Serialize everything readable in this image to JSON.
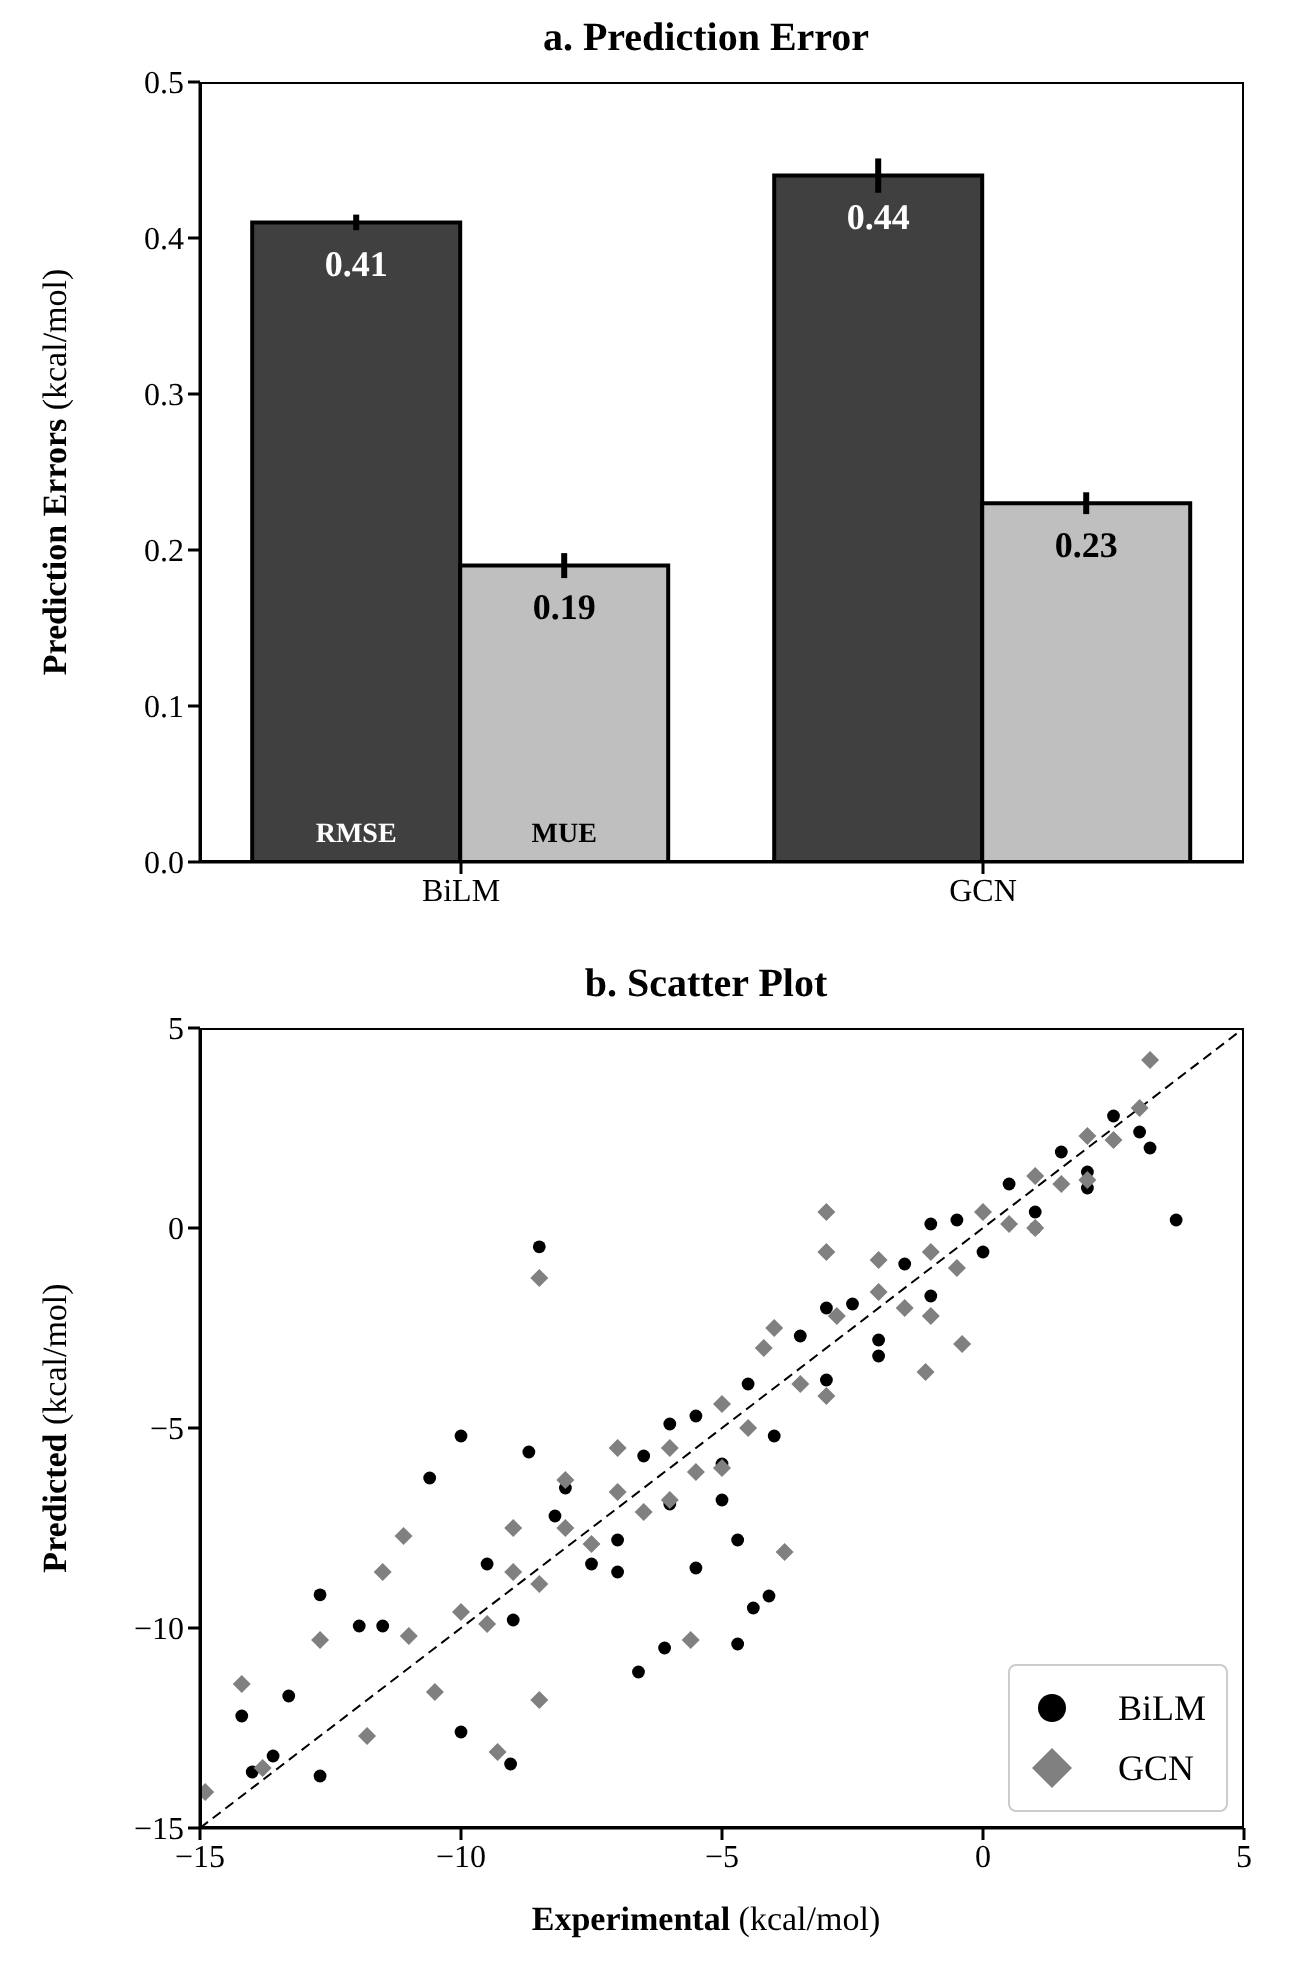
{
  "chart_data": [
    {
      "type": "bar",
      "title": "a.  Prediction Error",
      "ylabel": "Prediction Errors (kcal/mol)",
      "categories": [
        "BiLM",
        "GCN"
      ],
      "series": [
        {
          "name": "RMSE",
          "color": "#404040",
          "values": [
            0.41,
            0.44
          ],
          "errors": [
            0.005,
            0.011
          ]
        },
        {
          "name": "MUE",
          "color": "#bfbfbf",
          "values": [
            0.19,
            0.23
          ],
          "errors": [
            0.008,
            0.007
          ]
        }
      ],
      "ylim": [
        0,
        0.5
      ],
      "yticks": [
        {
          "value": 0,
          "label": "0.0"
        },
        0.1,
        0.2,
        0.3,
        0.4,
        0.5
      ],
      "data_labels": true
    },
    {
      "type": "scatter",
      "title": "b.  Scatter Plot",
      "xlabel": "Experimental (kcal/mol)",
      "ylabel": "Predicted (kcal/mol)",
      "series": [
        {
          "type": "line",
          "color": "#000000",
          "line_style": "dashed",
          "marker": "none",
          "x": [
            -15,
            5
          ],
          "values": [
            -15,
            5
          ]
        },
        {
          "name": "BiLM",
          "color": "#000000",
          "marker": "circle",
          "x": [
            -8.5,
            -12.7,
            -14.2,
            -10,
            -10.6,
            -8.7,
            -6.6,
            -6.1,
            -10,
            -9.05,
            -13.3,
            -12.7,
            -11.95,
            -11.5,
            3.7,
            -4.7,
            -4.4,
            -4.1,
            -4.7,
            -5.5,
            -13.6,
            -14,
            -9.5,
            -9,
            -8.2,
            -7.5,
            -7,
            -6.5,
            -6,
            -5.5,
            -5,
            -4.5,
            -4,
            -3.5,
            -3,
            -2.5,
            -2,
            -1.5,
            -1,
            -0.5,
            0,
            0.5,
            1,
            1.5,
            2,
            2.5,
            3,
            -8,
            -7,
            -6,
            -5,
            -3,
            -2,
            -1,
            1,
            2,
            3.2
          ],
          "values": [
            -0.47,
            -9.17,
            -12.2,
            -5.2,
            -6.25,
            -5.6,
            -11.1,
            -10.5,
            -12.6,
            -13.4,
            -11.7,
            -13.7,
            -9.95,
            -9.95,
            0.2,
            -10.4,
            -9.5,
            -9.2,
            -7.8,
            -8.5,
            -13.2,
            -13.6,
            -8.4,
            -9.8,
            -7.2,
            -8.4,
            -7.8,
            -5.7,
            -6.9,
            -4.7,
            -5.9,
            -3.9,
            -5.2,
            -2.7,
            -3.8,
            -1.9,
            -2.8,
            -0.9,
            -1.7,
            0.2,
            -0.6,
            1.1,
            0.4,
            1.9,
            1.4,
            2.8,
            2.4,
            -6.5,
            -8.6,
            -4.9,
            -6.8,
            -2.0,
            -3.2,
            0.1,
            0.0,
            1.0,
            2.0
          ]
        },
        {
          "name": "GCN",
          "color": "#808080",
          "marker": "diamond",
          "x": [
            -8.5,
            -14.2,
            -14.9,
            -9.3,
            -8.5,
            -12.7,
            -11.8,
            -11.5,
            -11.1,
            3.2,
            -3.0,
            -3.0,
            -1.1,
            -0.4,
            -3.8,
            -5.6,
            -10,
            -9.5,
            -9,
            -8.5,
            -8,
            -7.5,
            -7,
            -6.5,
            -6,
            -5.5,
            -5,
            -4.5,
            -4.2,
            -3.5,
            -2.8,
            -2,
            -1.5,
            -1,
            -0.5,
            0,
            0.5,
            1,
            1.5,
            2,
            2.5,
            3,
            -9,
            -8,
            -7,
            -6,
            -5,
            -4,
            -3,
            -2,
            -1,
            1,
            2,
            -13.8,
            -11,
            -10.5
          ],
          "values": [
            -1.25,
            -11.4,
            -14.1,
            -13.1,
            -11.8,
            -10.3,
            -12.7,
            -8.6,
            -7.7,
            4.2,
            0.4,
            -0.6,
            -3.6,
            -2.9,
            -8.1,
            -10.3,
            -9.6,
            -9.9,
            -8.6,
            -8.9,
            -7.5,
            -7.9,
            -6.6,
            -7.1,
            -5.5,
            -6.1,
            -4.4,
            -5.0,
            -3.0,
            -3.9,
            -2.2,
            -1.6,
            -2.0,
            -0.6,
            -1.0,
            0.4,
            0.1,
            1.3,
            1.1,
            2.3,
            2.2,
            3.0,
            -7.5,
            -6.3,
            -5.5,
            -6.8,
            -6.0,
            -2.5,
            -4.2,
            -0.8,
            -2.2,
            0.0,
            1.2,
            -13.5,
            -10.2,
            -11.6
          ]
        }
      ],
      "xlim": [
        -15,
        5
      ],
      "xticks": [
        -15,
        -10,
        -5,
        0,
        5
      ],
      "ylim": [
        -15,
        5
      ],
      "yticks": [
        -15,
        -10,
        -5,
        0,
        5
      ],
      "legend": "bottom right"
    }
  ]
}
